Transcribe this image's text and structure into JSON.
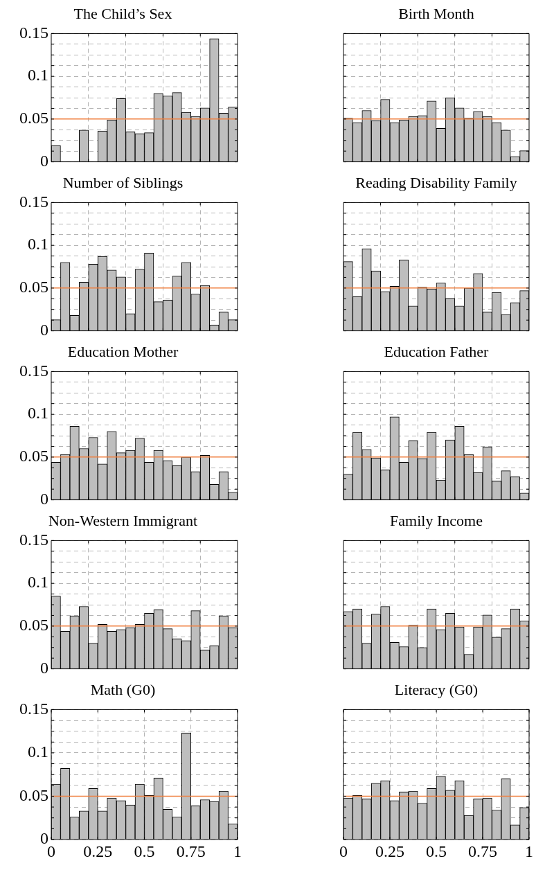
{
  "chart_data": [
    {
      "type": "histogram",
      "title": "The Child’s Sex",
      "bins": [
        0,
        0.05,
        0.1,
        0.15,
        0.2,
        0.25,
        0.3,
        0.35,
        0.4,
        0.45,
        0.5,
        0.55,
        0.6,
        0.65,
        0.7,
        0.75,
        0.8,
        0.85,
        0.9,
        0.95,
        1
      ],
      "values": [
        0.019,
        0,
        0,
        0.037,
        0,
        0.036,
        0.049,
        0.074,
        0.035,
        0.033,
        0.034,
        0.08,
        0.077,
        0.081,
        0.058,
        0.053,
        0.063,
        0.144,
        0.057,
        0.064
      ],
      "color": "#bebebe",
      "xlim": [
        0,
        1
      ],
      "xticks": [
        {
          "value": 0.2,
          "label": null
        },
        {
          "value": 0.4,
          "label": null
        },
        {
          "value": 0.6,
          "label": null
        },
        {
          "value": 0.8,
          "label": null
        }
      ],
      "ylim": [
        0,
        0.15
      ],
      "yticks": [
        0,
        {
          "value": 0.0125,
          "label": null
        },
        {
          "value": 0.025,
          "label": null
        },
        {
          "value": 0.0375,
          "label": null
        },
        0.05,
        {
          "value": 0.0625,
          "label": null
        },
        {
          "value": 0.075,
          "label": null
        },
        {
          "value": 0.0875,
          "label": null
        },
        0.1,
        {
          "value": 0.1125,
          "label": null
        },
        {
          "value": 0.125,
          "label": null
        },
        {
          "value": 0.1375,
          "label": null
        },
        0.15
      ],
      "grid": true,
      "tick_labels": "y",
      "ref_lines": [
        {
          "axis": "y",
          "value": 0.05,
          "color": "#f08040"
        }
      ]
    },
    {
      "type": "histogram",
      "title": "Birth Month",
      "bins": [
        0,
        0.05,
        0.1,
        0.15,
        0.2,
        0.25,
        0.3,
        0.35,
        0.4,
        0.45,
        0.5,
        0.55,
        0.6,
        0.65,
        0.7,
        0.75,
        0.8,
        0.85,
        0.9,
        0.95,
        1
      ],
      "values": [
        0.051,
        0.046,
        0.06,
        0.048,
        0.073,
        0.046,
        0.049,
        0.053,
        0.054,
        0.071,
        0.039,
        0.075,
        0.063,
        0.051,
        0.059,
        0.053,
        0.046,
        0.037,
        0.006,
        0.013
      ],
      "color": "#bebebe",
      "xlim": [
        0,
        1
      ],
      "xticks": [
        {
          "value": 0.2,
          "label": null
        },
        {
          "value": 0.4,
          "label": null
        },
        {
          "value": 0.6,
          "label": null
        },
        {
          "value": 0.8,
          "label": null
        }
      ],
      "ylim": [
        0,
        0.15
      ],
      "yticks": [
        0,
        {
          "value": 0.0125,
          "label": null
        },
        {
          "value": 0.025,
          "label": null
        },
        {
          "value": 0.0375,
          "label": null
        },
        0.05,
        {
          "value": 0.0625,
          "label": null
        },
        {
          "value": 0.075,
          "label": null
        },
        {
          "value": 0.0875,
          "label": null
        },
        0.1,
        {
          "value": 0.1125,
          "label": null
        },
        {
          "value": 0.125,
          "label": null
        },
        {
          "value": 0.1375,
          "label": null
        },
        0.15
      ],
      "grid": true,
      "tick_labels": false,
      "ref_lines": [
        {
          "axis": "y",
          "value": 0.05,
          "color": "#f08040"
        }
      ]
    },
    {
      "type": "histogram",
      "title": "Number of Siblings",
      "bins": [
        0,
        0.05,
        0.1,
        0.15,
        0.2,
        0.25,
        0.3,
        0.35,
        0.4,
        0.45,
        0.5,
        0.55,
        0.6,
        0.65,
        0.7,
        0.75,
        0.8,
        0.85,
        0.9,
        0.95,
        1
      ],
      "values": [
        0.013,
        0.08,
        0.018,
        0.057,
        0.078,
        0.087,
        0.071,
        0.063,
        0.02,
        0.072,
        0.091,
        0.034,
        0.036,
        0.064,
        0.08,
        0.043,
        0.053,
        0.007,
        0.022,
        0.013
      ],
      "color": "#bebebe",
      "xlim": [
        0,
        1
      ],
      "xticks": [
        {
          "value": 0.2,
          "label": null
        },
        {
          "value": 0.4,
          "label": null
        },
        {
          "value": 0.6,
          "label": null
        },
        {
          "value": 0.8,
          "label": null
        }
      ],
      "ylim": [
        0,
        0.15
      ],
      "yticks": [
        0,
        {
          "value": 0.0125,
          "label": null
        },
        {
          "value": 0.025,
          "label": null
        },
        {
          "value": 0.0375,
          "label": null
        },
        0.05,
        {
          "value": 0.0625,
          "label": null
        },
        {
          "value": 0.075,
          "label": null
        },
        {
          "value": 0.0875,
          "label": null
        },
        0.1,
        {
          "value": 0.1125,
          "label": null
        },
        {
          "value": 0.125,
          "label": null
        },
        {
          "value": 0.1375,
          "label": null
        },
        0.15
      ],
      "grid": true,
      "tick_labels": "y",
      "ref_lines": [
        {
          "axis": "y",
          "value": 0.05,
          "color": "#f08040"
        }
      ]
    },
    {
      "type": "histogram",
      "title": "Reading Disability Family",
      "bins": [
        0,
        0.05,
        0.1,
        0.15,
        0.2,
        0.25,
        0.3,
        0.35,
        0.4,
        0.45,
        0.5,
        0.55,
        0.6,
        0.65,
        0.7,
        0.75,
        0.8,
        0.85,
        0.9,
        0.95,
        1
      ],
      "values": [
        0.081,
        0.04,
        0.096,
        0.07,
        0.046,
        0.052,
        0.083,
        0.029,
        0.051,
        0.049,
        0.056,
        0.038,
        0.029,
        0.05,
        0.067,
        0.022,
        0.045,
        0.019,
        0.033,
        0.047
      ],
      "color": "#bebebe",
      "xlim": [
        0,
        1
      ],
      "xticks": [
        {
          "value": 0.2,
          "label": null
        },
        {
          "value": 0.4,
          "label": null
        },
        {
          "value": 0.6,
          "label": null
        },
        {
          "value": 0.8,
          "label": null
        }
      ],
      "ylim": [
        0,
        0.15
      ],
      "yticks": [
        0,
        {
          "value": 0.0125,
          "label": null
        },
        {
          "value": 0.025,
          "label": null
        },
        {
          "value": 0.0375,
          "label": null
        },
        0.05,
        {
          "value": 0.0625,
          "label": null
        },
        {
          "value": 0.075,
          "label": null
        },
        {
          "value": 0.0875,
          "label": null
        },
        0.1,
        {
          "value": 0.1125,
          "label": null
        },
        {
          "value": 0.125,
          "label": null
        },
        {
          "value": 0.1375,
          "label": null
        },
        0.15
      ],
      "grid": true,
      "tick_labels": false,
      "ref_lines": [
        {
          "axis": "y",
          "value": 0.05,
          "color": "#f08040"
        }
      ]
    },
    {
      "type": "histogram",
      "title": "Education Mother",
      "bins": [
        0,
        0.05,
        0.1,
        0.15,
        0.2,
        0.25,
        0.3,
        0.35,
        0.4,
        0.45,
        0.5,
        0.55,
        0.6,
        0.65,
        0.7,
        0.75,
        0.8,
        0.85,
        0.9,
        0.95,
        1
      ],
      "values": [
        0.044,
        0.053,
        0.086,
        0.06,
        0.073,
        0.042,
        0.08,
        0.055,
        0.058,
        0.072,
        0.044,
        0.058,
        0.046,
        0.04,
        0.05,
        0.033,
        0.052,
        0.018,
        0.033,
        0.009
      ],
      "color": "#bebebe",
      "xlim": [
        0,
        1
      ],
      "xticks": [
        {
          "value": 0.2,
          "label": null
        },
        {
          "value": 0.4,
          "label": null
        },
        {
          "value": 0.6,
          "label": null
        },
        {
          "value": 0.8,
          "label": null
        }
      ],
      "ylim": [
        0,
        0.15
      ],
      "yticks": [
        0,
        {
          "value": 0.0125,
          "label": null
        },
        {
          "value": 0.025,
          "label": null
        },
        {
          "value": 0.0375,
          "label": null
        },
        0.05,
        {
          "value": 0.0625,
          "label": null
        },
        {
          "value": 0.075,
          "label": null
        },
        {
          "value": 0.0875,
          "label": null
        },
        0.1,
        {
          "value": 0.1125,
          "label": null
        },
        {
          "value": 0.125,
          "label": null
        },
        {
          "value": 0.1375,
          "label": null
        },
        0.15
      ],
      "grid": true,
      "tick_labels": "y",
      "ref_lines": [
        {
          "axis": "y",
          "value": 0.05,
          "color": "#f08040"
        }
      ]
    },
    {
      "type": "histogram",
      "title": "Education Father",
      "bins": [
        0,
        0.05,
        0.1,
        0.15,
        0.2,
        0.25,
        0.3,
        0.35,
        0.4,
        0.45,
        0.5,
        0.55,
        0.6,
        0.65,
        0.7,
        0.75,
        0.8,
        0.85,
        0.9,
        0.95,
        1
      ],
      "values": [
        0.03,
        0.079,
        0.059,
        0.049,
        0.035,
        0.097,
        0.044,
        0.069,
        0.048,
        0.079,
        0.023,
        0.07,
        0.086,
        0.053,
        0.032,
        0.062,
        0.022,
        0.034,
        0.027,
        0.008
      ],
      "color": "#bebebe",
      "xlim": [
        0,
        1
      ],
      "xticks": [
        {
          "value": 0.2,
          "label": null
        },
        {
          "value": 0.4,
          "label": null
        },
        {
          "value": 0.6,
          "label": null
        },
        {
          "value": 0.8,
          "label": null
        }
      ],
      "ylim": [
        0,
        0.15
      ],
      "yticks": [
        0,
        {
          "value": 0.0125,
          "label": null
        },
        {
          "value": 0.025,
          "label": null
        },
        {
          "value": 0.0375,
          "label": null
        },
        0.05,
        {
          "value": 0.0625,
          "label": null
        },
        {
          "value": 0.075,
          "label": null
        },
        {
          "value": 0.0875,
          "label": null
        },
        0.1,
        {
          "value": 0.1125,
          "label": null
        },
        {
          "value": 0.125,
          "label": null
        },
        {
          "value": 0.1375,
          "label": null
        },
        0.15
      ],
      "grid": true,
      "tick_labels": false,
      "ref_lines": [
        {
          "axis": "y",
          "value": 0.05,
          "color": "#f08040"
        }
      ]
    },
    {
      "type": "histogram",
      "title": "Non-Western Immigrant",
      "bins": [
        0,
        0.05,
        0.1,
        0.15,
        0.2,
        0.25,
        0.3,
        0.35,
        0.4,
        0.45,
        0.5,
        0.55,
        0.6,
        0.65,
        0.7,
        0.75,
        0.8,
        0.85,
        0.9,
        0.95,
        1
      ],
      "values": [
        0.085,
        0.044,
        0.062,
        0.073,
        0.03,
        0.052,
        0.044,
        0.046,
        0.048,
        0.052,
        0.065,
        0.069,
        0.047,
        0.035,
        0.033,
        0.068,
        0.022,
        0.027,
        0.062,
        0.048
      ],
      "color": "#bebebe",
      "xlim": [
        0,
        1
      ],
      "xticks": [
        {
          "value": 0.2,
          "label": null
        },
        {
          "value": 0.4,
          "label": null
        },
        {
          "value": 0.6,
          "label": null
        },
        {
          "value": 0.8,
          "label": null
        }
      ],
      "ylim": [
        0,
        0.15
      ],
      "yticks": [
        0,
        {
          "value": 0.0125,
          "label": null
        },
        {
          "value": 0.025,
          "label": null
        },
        {
          "value": 0.0375,
          "label": null
        },
        0.05,
        {
          "value": 0.0625,
          "label": null
        },
        {
          "value": 0.075,
          "label": null
        },
        {
          "value": 0.0875,
          "label": null
        },
        0.1,
        {
          "value": 0.1125,
          "label": null
        },
        {
          "value": 0.125,
          "label": null
        },
        {
          "value": 0.1375,
          "label": null
        },
        0.15
      ],
      "grid": true,
      "tick_labels": "y",
      "ref_lines": [
        {
          "axis": "y",
          "value": 0.05,
          "color": "#f08040"
        }
      ]
    },
    {
      "type": "histogram",
      "title": "Family Income",
      "bins": [
        0,
        0.05,
        0.1,
        0.15,
        0.2,
        0.25,
        0.3,
        0.35,
        0.4,
        0.45,
        0.5,
        0.55,
        0.6,
        0.65,
        0.7,
        0.75,
        0.8,
        0.85,
        0.9,
        0.95,
        1
      ],
      "values": [
        0.067,
        0.07,
        0.03,
        0.064,
        0.073,
        0.031,
        0.026,
        0.051,
        0.025,
        0.07,
        0.046,
        0.065,
        0.049,
        0.017,
        0.049,
        0.063,
        0.037,
        0.047,
        0.07,
        0.056
      ],
      "color": "#bebebe",
      "xlim": [
        0,
        1
      ],
      "xticks": [
        {
          "value": 0.2,
          "label": null
        },
        {
          "value": 0.4,
          "label": null
        },
        {
          "value": 0.6,
          "label": null
        },
        {
          "value": 0.8,
          "label": null
        }
      ],
      "ylim": [
        0,
        0.15
      ],
      "yticks": [
        0,
        {
          "value": 0.0125,
          "label": null
        },
        {
          "value": 0.025,
          "label": null
        },
        {
          "value": 0.0375,
          "label": null
        },
        0.05,
        {
          "value": 0.0625,
          "label": null
        },
        {
          "value": 0.075,
          "label": null
        },
        {
          "value": 0.0875,
          "label": null
        },
        0.1,
        {
          "value": 0.1125,
          "label": null
        },
        {
          "value": 0.125,
          "label": null
        },
        {
          "value": 0.1375,
          "label": null
        },
        0.15
      ],
      "grid": true,
      "tick_labels": false,
      "ref_lines": [
        {
          "axis": "y",
          "value": 0.05,
          "color": "#f08040"
        }
      ]
    },
    {
      "type": "histogram",
      "title": "Math (G0)",
      "bins": [
        0,
        0.05,
        0.1,
        0.15,
        0.2,
        0.25,
        0.3,
        0.35,
        0.4,
        0.45,
        0.5,
        0.55,
        0.6,
        0.65,
        0.7,
        0.75,
        0.8,
        0.85,
        0.9,
        0.95,
        1
      ],
      "values": [
        0.064,
        0.082,
        0.026,
        0.033,
        0.059,
        0.033,
        0.048,
        0.045,
        0.04,
        0.064,
        0.051,
        0.071,
        0.035,
        0.026,
        0.123,
        0.039,
        0.046,
        0.044,
        0.056,
        0.018
      ],
      "color": "#bebebe",
      "xlim": [
        0,
        1
      ],
      "xticks": [
        0,
        0.25,
        0.5,
        0.75,
        1
      ],
      "ylim": [
        0,
        0.15
      ],
      "yticks": [
        0,
        {
          "value": 0.0125,
          "label": null
        },
        {
          "value": 0.025,
          "label": null
        },
        {
          "value": 0.0375,
          "label": null
        },
        0.05,
        {
          "value": 0.0625,
          "label": null
        },
        {
          "value": 0.075,
          "label": null
        },
        {
          "value": 0.0875,
          "label": null
        },
        0.1,
        {
          "value": 0.1125,
          "label": null
        },
        {
          "value": 0.125,
          "label": null
        },
        {
          "value": 0.1375,
          "label": null
        },
        0.15
      ],
      "grid": true,
      "ref_lines": [
        {
          "axis": "y",
          "value": 0.05,
          "color": "#f08040"
        }
      ]
    },
    {
      "type": "histogram",
      "title": "Literacy (G0)",
      "bins": [
        0,
        0.05,
        0.1,
        0.15,
        0.2,
        0.25,
        0.3,
        0.35,
        0.4,
        0.45,
        0.5,
        0.55,
        0.6,
        0.65,
        0.7,
        0.75,
        0.8,
        0.85,
        0.9,
        0.95,
        1
      ],
      "values": [
        0.048,
        0.051,
        0.047,
        0.065,
        0.068,
        0.045,
        0.055,
        0.056,
        0.042,
        0.059,
        0.073,
        0.057,
        0.068,
        0.028,
        0.047,
        0.048,
        0.034,
        0.07,
        0.017,
        0.037
      ],
      "color": "#bebebe",
      "xlim": [
        0,
        1
      ],
      "xticks": [
        0,
        0.25,
        0.5,
        0.75,
        1
      ],
      "ylim": [
        0,
        0.15
      ],
      "yticks": [
        0,
        {
          "value": 0.0125,
          "label": null
        },
        {
          "value": 0.025,
          "label": null
        },
        {
          "value": 0.0375,
          "label": null
        },
        0.05,
        {
          "value": 0.0625,
          "label": null
        },
        {
          "value": 0.075,
          "label": null
        },
        {
          "value": 0.0875,
          "label": null
        },
        0.1,
        {
          "value": 0.1125,
          "label": null
        },
        {
          "value": 0.125,
          "label": null
        },
        {
          "value": 0.1375,
          "label": null
        },
        0.15
      ],
      "grid": true,
      "tick_labels": "x",
      "ref_lines": [
        {
          "axis": "y",
          "value": 0.05,
          "color": "#f08040"
        }
      ]
    }
  ]
}
